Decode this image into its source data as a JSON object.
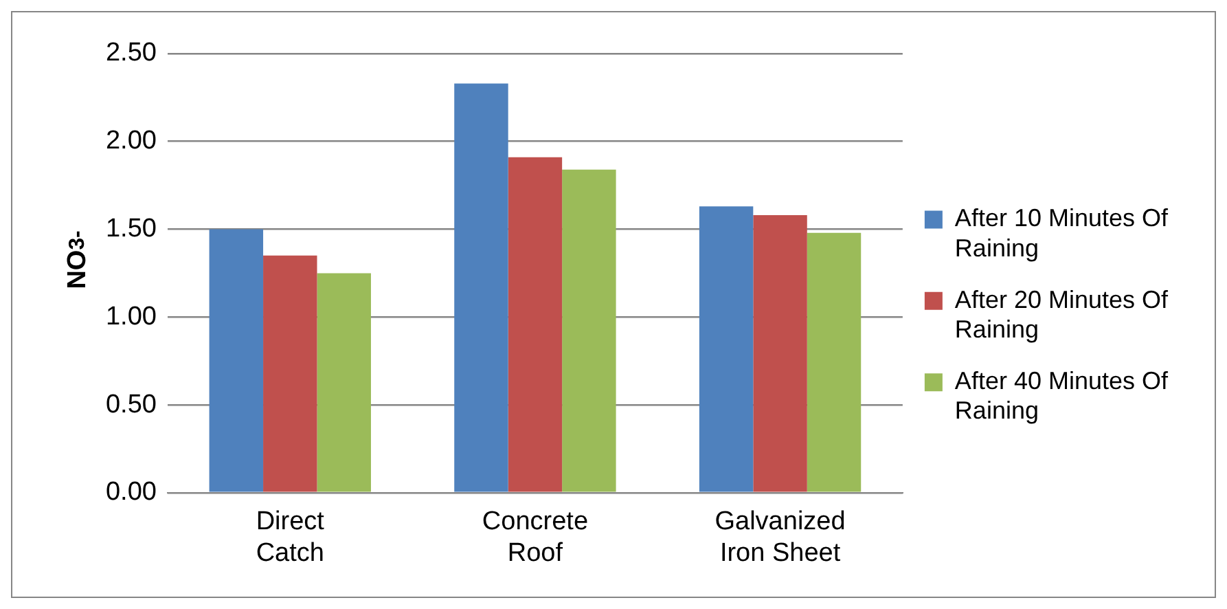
{
  "chart_data": {
    "type": "bar",
    "ylabel": "NO$_{3}$$^{-}$",
    "categories": [
      "Direct Catch",
      "Concrete Roof",
      "Galvanized Iron Sheet"
    ],
    "series": [
      {
        "name": "After 10 Minutes Of Raining",
        "color": "#4f81bd",
        "values": [
          1.5,
          2.33,
          1.63
        ]
      },
      {
        "name": "After 20 Minutes Of Raining",
        "color": "#c0504d",
        "values": [
          1.35,
          1.91,
          1.58
        ]
      },
      {
        "name": "After 40 Minutes Of Raining",
        "color": "#9bbb59",
        "values": [
          1.25,
          1.84,
          1.48
        ]
      }
    ],
    "ylim": [
      0,
      2.5
    ],
    "yticks": [
      {
        "value": 0,
        "label": "0.00"
      },
      {
        "value": 0.5,
        "label": "0.50"
      },
      {
        "value": 1,
        "label": "1.00"
      },
      {
        "value": 1.5,
        "label": "1.50"
      },
      {
        "value": 2,
        "label": "2.00"
      },
      {
        "value": 2.5,
        "label": "2.50"
      }
    ],
    "grid": "y",
    "legend": "right"
  }
}
